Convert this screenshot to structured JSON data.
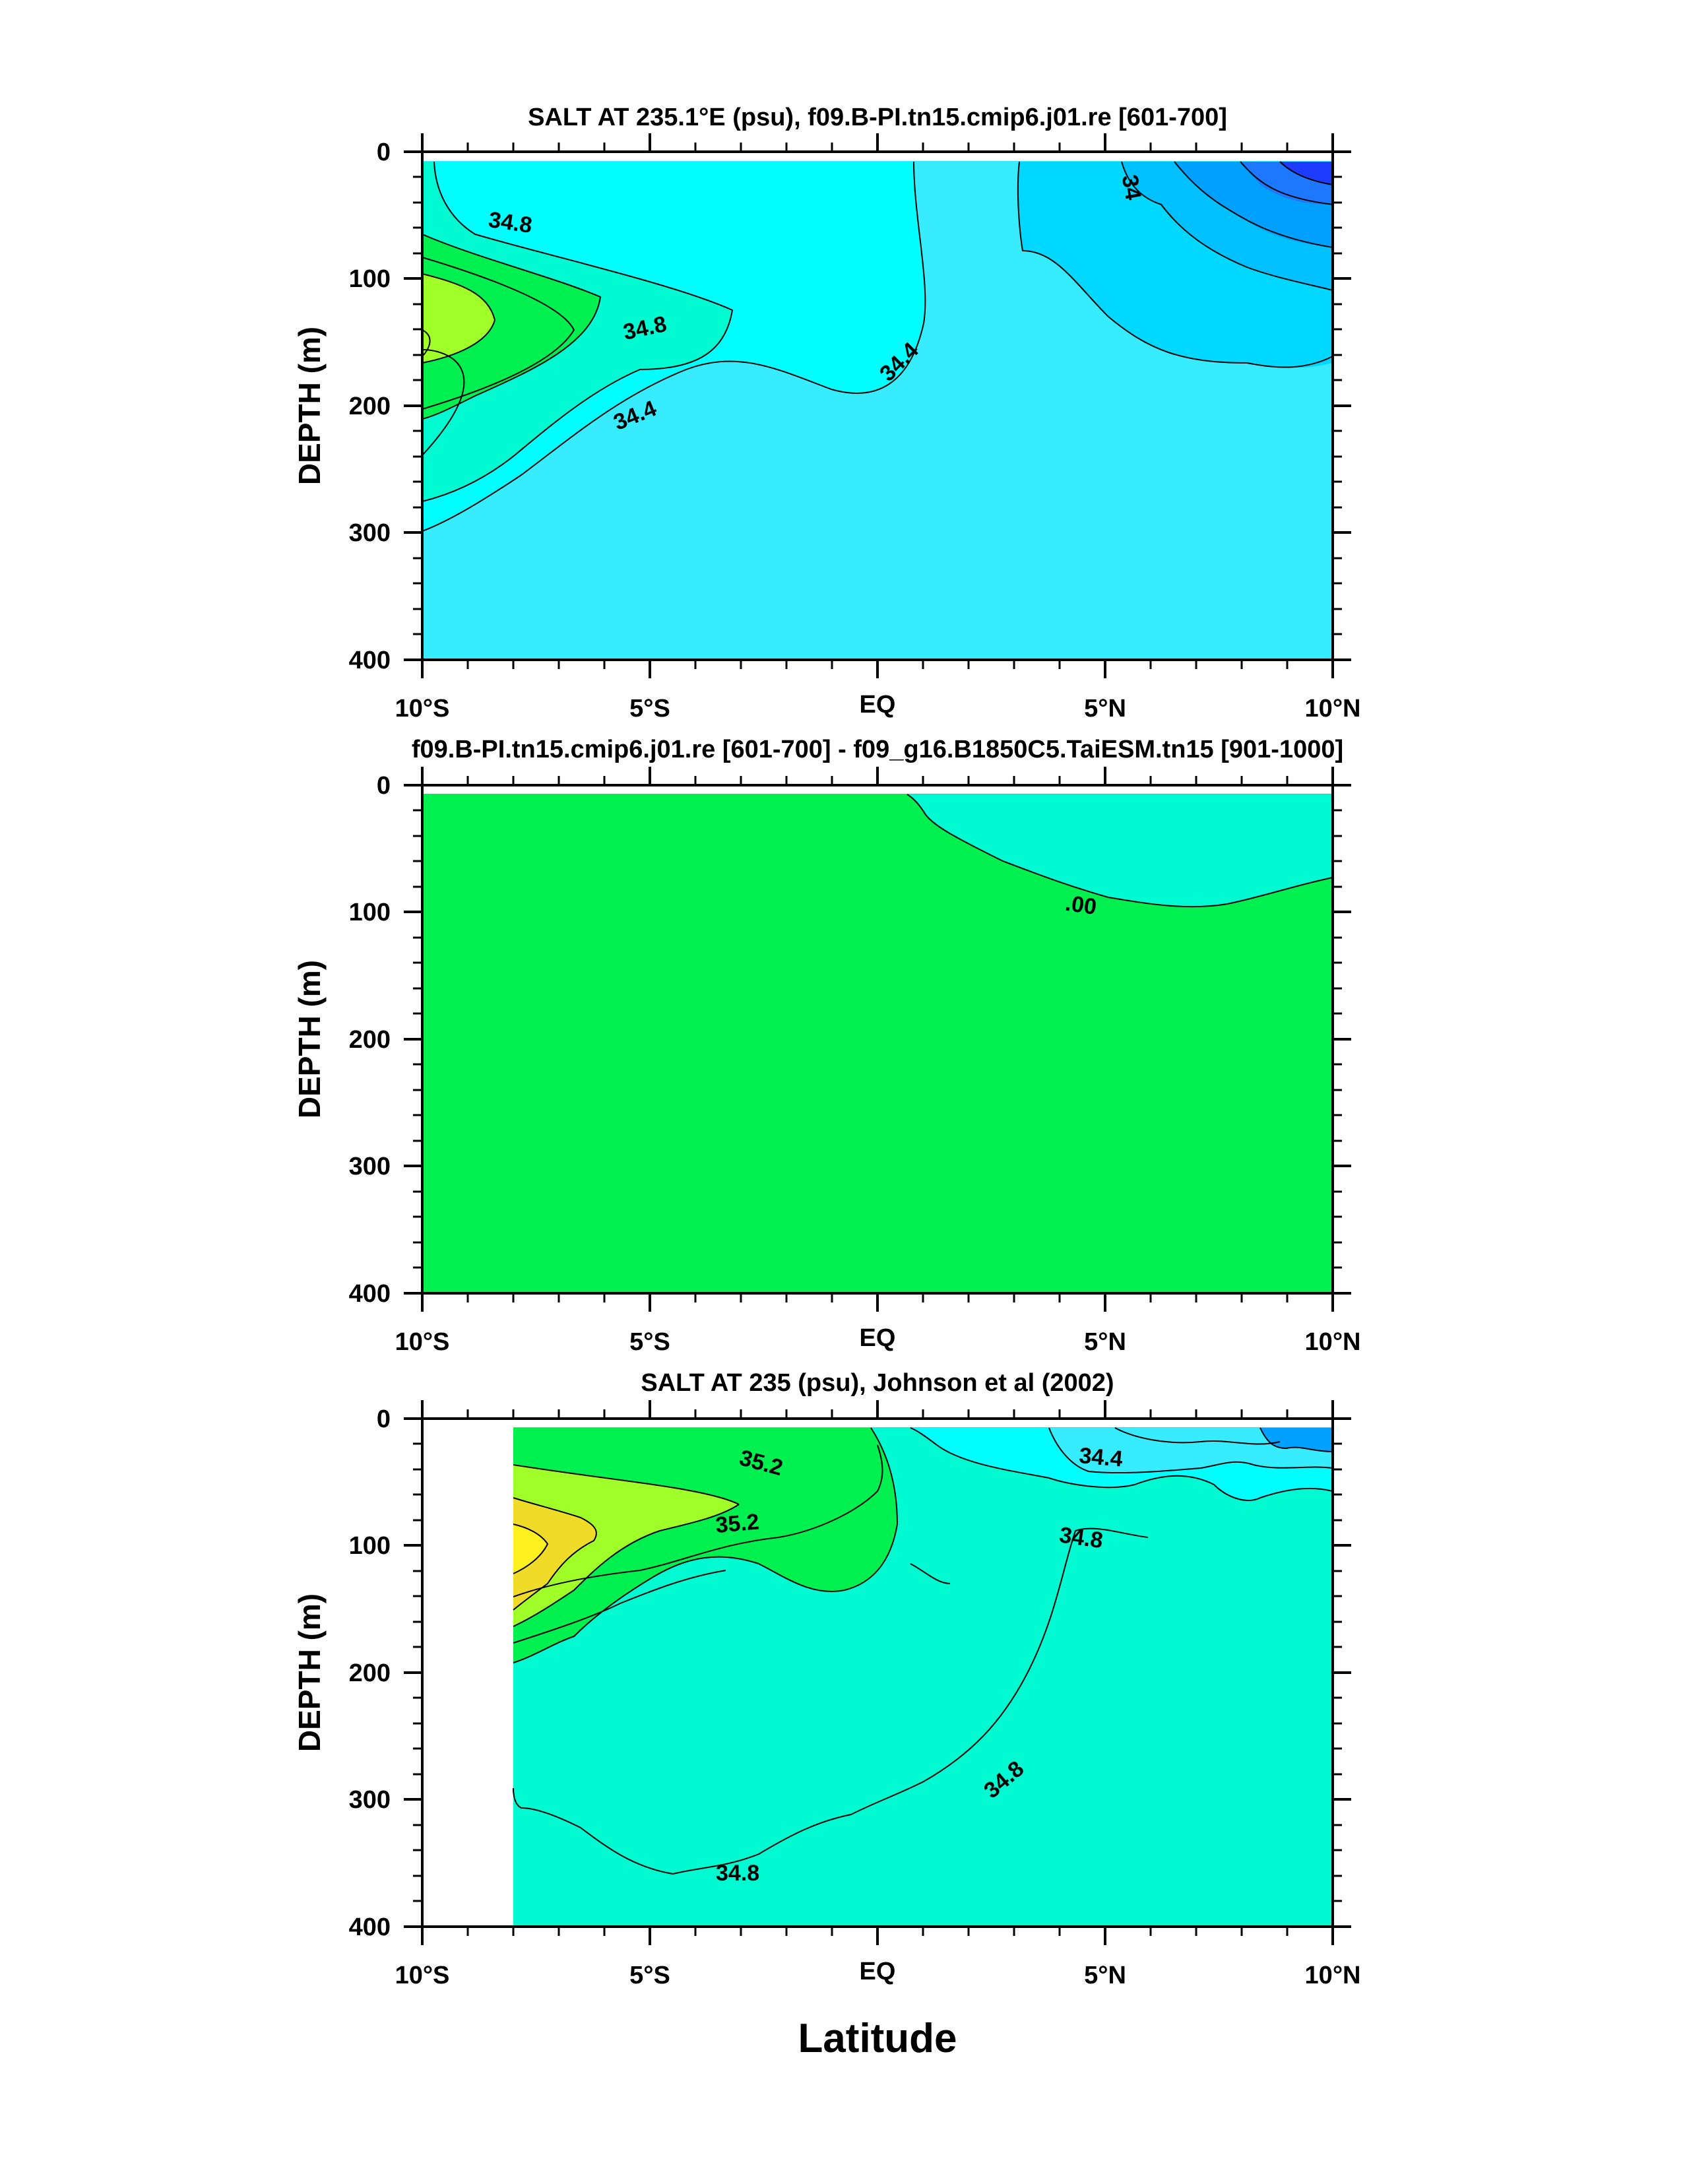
{
  "chart_data": [
    {
      "type": "contour",
      "title": "SALT AT 235.1°E (psu), f09.B-PI.tn15.cmip6.j01.re [601-700]",
      "ylabel": "DEPTH (m)",
      "xlabel": "",
      "xlim": [
        -10,
        10
      ],
      "ylim": [
        400,
        0
      ],
      "xticks": [
        "10°S",
        "5°S",
        "EQ",
        "5°N",
        "10°N"
      ],
      "yticks": [
        "0",
        "100",
        "200",
        "300",
        "400"
      ],
      "contour_labels": [
        "34.8",
        "34.8",
        "34.4",
        "34.4",
        "34"
      ],
      "colors": {
        "blue": "#1e3cff",
        "blue_mid": "#00a0ff",
        "cyan": "#00ffff",
        "light_cyan": "#38ecff",
        "aqua": "#00fad2",
        "green": "#00f050",
        "yellow_green": "#a0ff28"
      }
    },
    {
      "type": "contour",
      "title": "f09.B-PI.tn15.cmip6.j01.re [601-700] - f09_g16.B1850C5.TaiESM.tn15 [901-1000]",
      "ylabel": "DEPTH (m)",
      "xlabel": "",
      "xlim": [
        -10,
        10
      ],
      "ylim": [
        400,
        0
      ],
      "xticks": [
        "10°S",
        "5°S",
        "EQ",
        "5°N",
        "10°N"
      ],
      "yticks": [
        "0",
        "100",
        "200",
        "300",
        "400"
      ],
      "contour_labels": [
        ".00"
      ],
      "colors": {
        "green": "#00f050",
        "aqua": "#00fad2"
      }
    },
    {
      "type": "contour",
      "title": "SALT AT 235 (psu), Johnson et al (2002)",
      "ylabel": "DEPTH (m)",
      "xlabel": "Latitude",
      "xlim": [
        -10,
        10
      ],
      "ylim": [
        400,
        0
      ],
      "xticks": [
        "10°S",
        "5°S",
        "EQ",
        "5°N",
        "10°N"
      ],
      "yticks": [
        "0",
        "100",
        "200",
        "300",
        "400"
      ],
      "contour_labels": [
        "35.2",
        "35.2",
        "34.4",
        "34.8",
        "34.8",
        "34.8"
      ],
      "colors": {
        "yellow": "#fff020",
        "gold": "#f0dc28",
        "yellow_green": "#a0ff28",
        "green": "#00f050",
        "aqua": "#00fad2",
        "cyan": "#00ffff",
        "light_cyan": "#38ecff",
        "blue_mid": "#00a0ff"
      }
    }
  ]
}
